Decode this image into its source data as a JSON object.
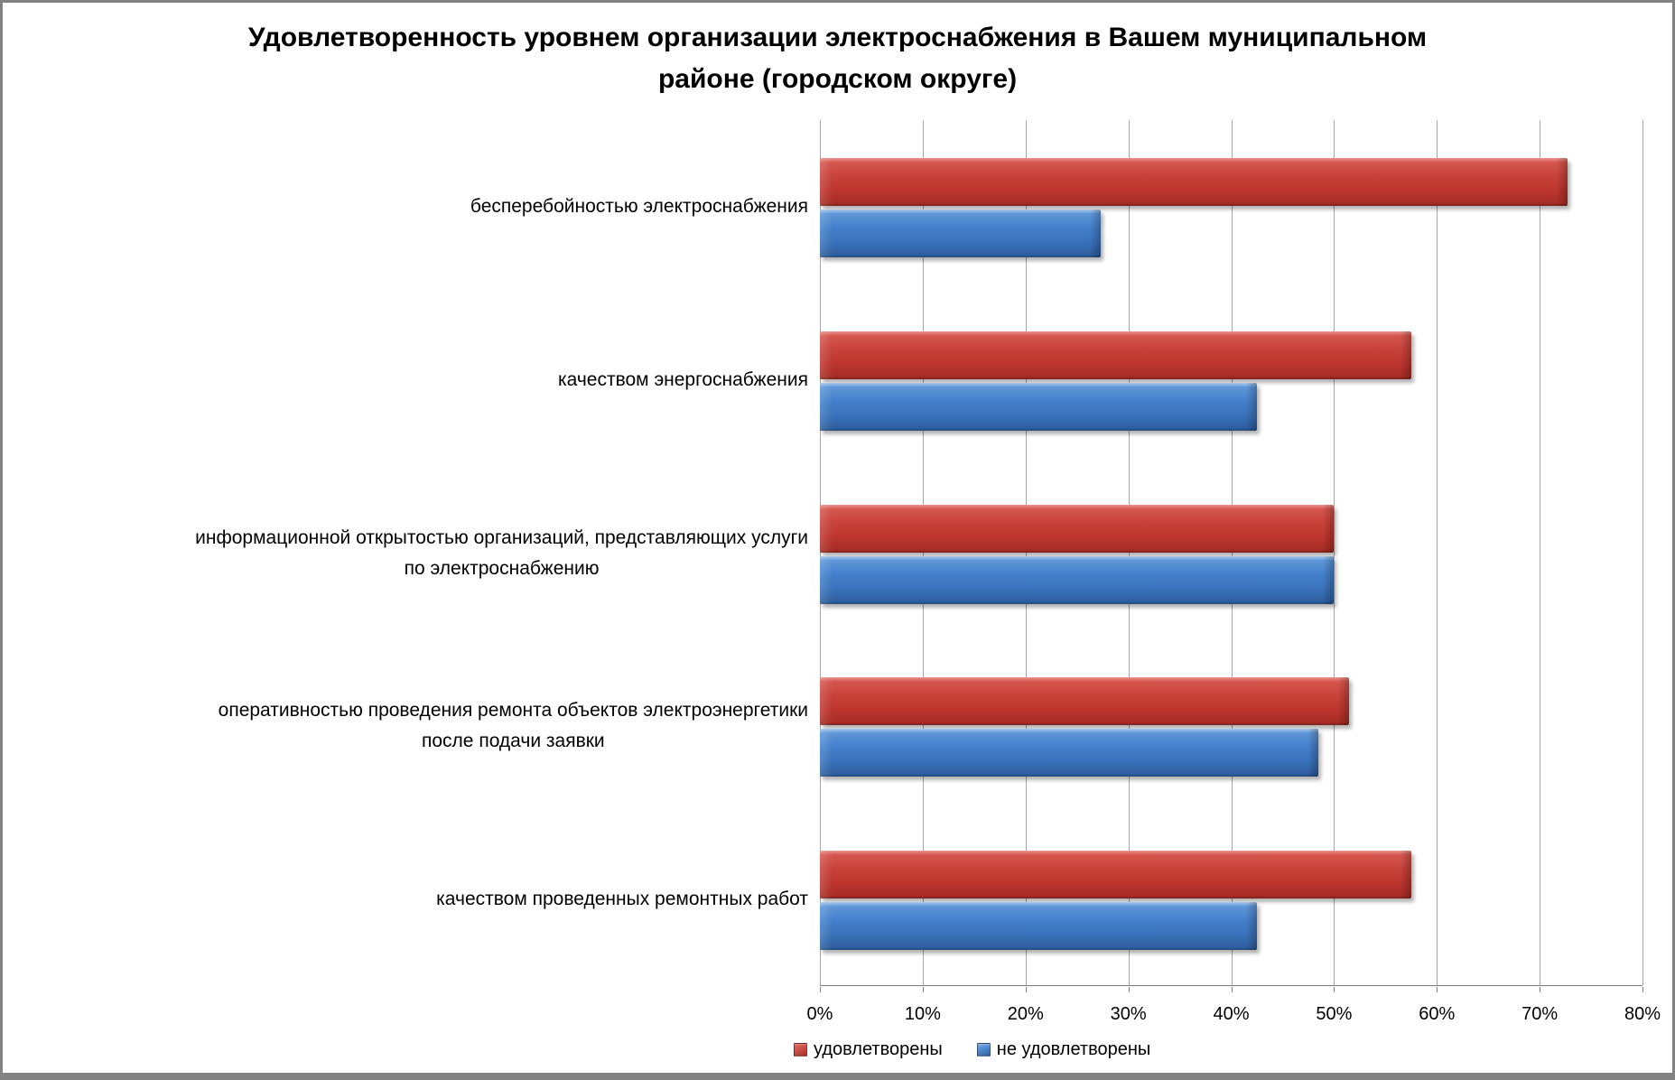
{
  "title": {
    "line1": "Удовлетворенность уровнем организации электроснабжения в Вашем муниципальном",
    "line2": "районе (городском округе)"
  },
  "chart_data": {
    "type": "bar",
    "orientation": "horizontal",
    "title": "Удовлетворенность уровнем организации электроснабжения в Вашем муниципальном районе (городском округе)",
    "categories": [
      {
        "lines": [
          "бесперебойностью электроснабжения"
        ]
      },
      {
        "lines": [
          "качеством энергоснабжения"
        ]
      },
      {
        "lines": [
          "информационной открытостью организаций, представляющих услуги",
          "по электроснабжению"
        ]
      },
      {
        "lines": [
          "оперативностью проведения ремонта объектов электроэнергетики",
          "после подачи заявки"
        ]
      },
      {
        "lines": [
          "качеством проведенных ремонтных работ"
        ]
      }
    ],
    "series": [
      {
        "name": "удовлетворены",
        "color": "#C2392F",
        "values": [
          72.7,
          57.5,
          50.0,
          51.5,
          57.5
        ]
      },
      {
        "name": "не удовлетворены",
        "color": "#3E79C5",
        "values": [
          27.3,
          42.5,
          50.0,
          48.5,
          42.5
        ]
      }
    ],
    "x_axis": {
      "min": 0,
      "max": 80,
      "tick_step": 10,
      "tick_labels": [
        "0%",
        "10%",
        "20%",
        "30%",
        "40%",
        "50%",
        "60%",
        "70%",
        "80%"
      ]
    },
    "grid": true,
    "legend_position": "bottom",
    "gridline_color": "#a6a6a6",
    "axis_line_color": "#808080"
  }
}
